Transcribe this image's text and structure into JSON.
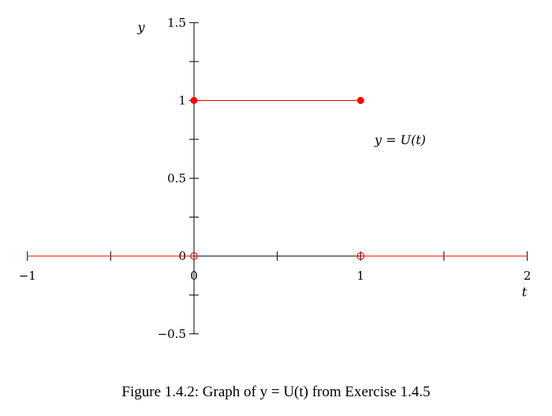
{
  "chart_data": {
    "type": "line",
    "title": "",
    "xlabel": "t",
    "ylabel": "y",
    "xlim": [
      -1,
      2
    ],
    "ylim": [
      -0.5,
      1.5
    ],
    "grid": false,
    "x_ticks": [
      -1,
      -0.5,
      0,
      0.5,
      1,
      1.5,
      2
    ],
    "x_tick_labels": [
      {
        "v": -1,
        "label": "−1"
      },
      {
        "v": 0,
        "label": "0"
      },
      {
        "v": 1,
        "label": "1"
      },
      {
        "v": 2,
        "label": "2"
      }
    ],
    "y_ticks": [
      -0.5,
      -0.25,
      0,
      0.25,
      0.5,
      0.75,
      1,
      1.25,
      1.5
    ],
    "y_tick_labels": [
      {
        "v": -0.5,
        "label": "−0.5"
      },
      {
        "v": 0,
        "label": "0"
      },
      {
        "v": 0.5,
        "label": "0.5"
      },
      {
        "v": 1,
        "label": "1"
      },
      {
        "v": 1.5,
        "label": "1.5"
      }
    ],
    "segments": [
      {
        "x": [
          -1,
          0
        ],
        "y": [
          0,
          0
        ]
      },
      {
        "x": [
          0,
          1
        ],
        "y": [
          1,
          1
        ]
      },
      {
        "x": [
          1,
          2
        ],
        "y": [
          0,
          0
        ]
      }
    ],
    "filled_points": [
      {
        "x": 0,
        "y": 1
      },
      {
        "x": 1,
        "y": 1
      }
    ],
    "open_points": [
      {
        "x": 0,
        "y": 0
      },
      {
        "x": 1,
        "y": 0
      }
    ],
    "annotation": {
      "text": "y = U(t)",
      "x": 1.1,
      "y": 0.74
    },
    "series_color": "#ff0000"
  },
  "caption": "Figure 1.4.2: Graph of y = U(t) from Exercise 1.4.5"
}
